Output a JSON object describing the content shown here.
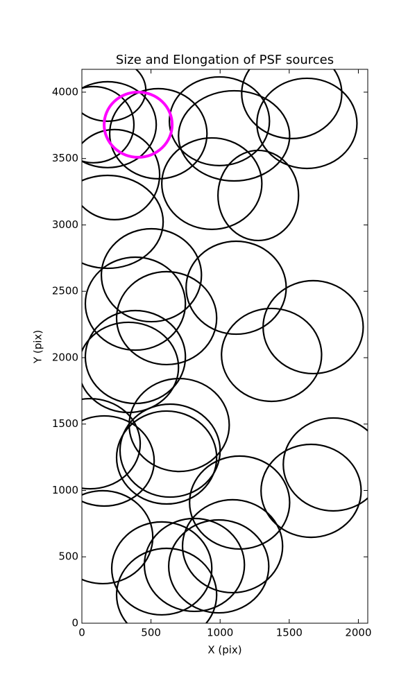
{
  "chart_data": {
    "type": "ellipse",
    "title": "Size and Elongation of PSF sources",
    "xlabel": "X (pix)",
    "ylabel": "Y (pix)",
    "xlim": [
      0,
      2068
    ],
    "ylim": [
      0,
      4172
    ],
    "xticks": [
      0,
      500,
      1000,
      1500,
      2000
    ],
    "yticks": [
      0,
      500,
      1000,
      1500,
      2000,
      2500,
      3000,
      3500,
      4000
    ],
    "color": "#000000",
    "x": [
      186,
      85,
      186,
      553,
      995,
      1518,
      1101,
      1628,
      940,
      1276,
      236,
      186,
      503,
      387,
      613,
      1116,
      1673,
      1372,
      387,
      337,
      704,
      638,
      60,
      161,
      613,
      1141,
      1819,
      1658,
      151,
      578,
      814,
      1090,
      990,
      613
    ],
    "y": [
      4016,
      3755,
      3755,
      3687,
      3781,
      3990,
      3671,
      3765,
      3311,
      3222,
      3379,
      3023,
      2621,
      2407,
      2298,
      2527,
      2230,
      2021,
      2005,
      1927,
      1493,
      1300,
      1352,
      1222,
      1248,
      909,
      1196,
      997,
      648,
      413,
      439,
      580,
      428,
      214
    ],
    "width": [
      553,
      583,
      704,
      704,
      724,
      724,
      804,
      724,
      724,
      583,
      653,
      804,
      724,
      724,
      724,
      724,
      724,
      724,
      724,
      724,
      724,
      724,
      724,
      724,
      724,
      724,
      724,
      724,
      724,
      724,
      724,
      724,
      724,
      724
    ],
    "height": [
      470,
      574,
      647,
      679,
      668,
      679,
      679,
      679,
      689,
      679,
      679,
      700,
      700,
      700,
      700,
      700,
      700,
      700,
      700,
      679,
      700,
      700,
      679,
      679,
      700,
      700,
      700,
      700,
      700,
      700,
      700,
      700,
      700,
      700
    ],
    "highlight": {
      "color": "#ff00ff",
      "x": 407,
      "y": 3755,
      "width": 492,
      "height": 491
    }
  }
}
